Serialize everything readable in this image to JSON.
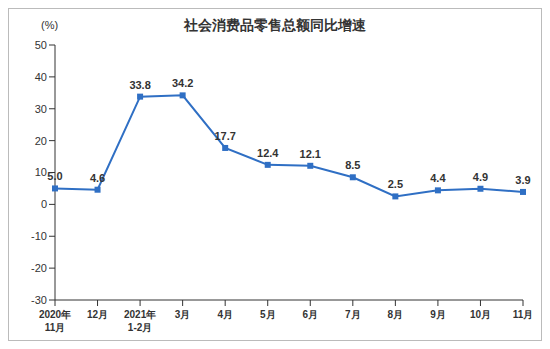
{
  "chart_data": {
    "type": "line",
    "title": "社会消费品零售总额同比增速",
    "y_label": "(%)",
    "categories": [
      "2020年\n11月",
      "12月",
      "2021年\n1-2月",
      "3月",
      "4月",
      "5月",
      "6月",
      "7月",
      "8月",
      "9月",
      "10月",
      "11月"
    ],
    "values": [
      5.0,
      4.6,
      33.8,
      34.2,
      17.7,
      12.4,
      12.1,
      8.5,
      2.5,
      4.4,
      4.9,
      3.9
    ],
    "value_labels": [
      "5.0",
      "4.6",
      "33.8",
      "34.2",
      "17.7",
      "12.4",
      "12.1",
      "8.5",
      "2.5",
      "4.4",
      "4.9",
      "3.9"
    ],
    "color": "#2f6fc4",
    "marker": "square",
    "ylim": [
      -30,
      50
    ],
    "yticks": [
      -30,
      -20,
      -10,
      0,
      10,
      20,
      30,
      40,
      50
    ],
    "grid": false,
    "data_labels": true
  }
}
